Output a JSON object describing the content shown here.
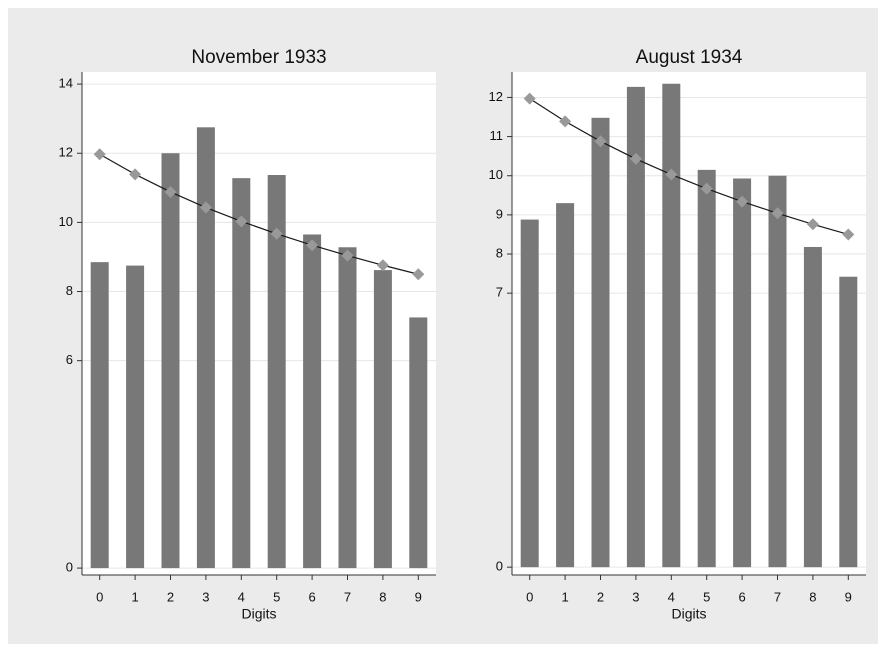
{
  "chart_data": [
    {
      "type": "bar",
      "title": "November 1933",
      "x_label": "Digits",
      "categories": [
        "0",
        "1",
        "2",
        "3",
        "4",
        "5",
        "6",
        "7",
        "8",
        "9"
      ],
      "values": [
        8.85,
        8.75,
        12.0,
        12.75,
        11.28,
        11.37,
        9.65,
        9.28,
        8.62,
        7.25
      ],
      "line_values": [
        11.97,
        11.39,
        10.88,
        10.43,
        10.03,
        9.67,
        9.34,
        9.04,
        8.76,
        8.5
      ],
      "color": "#787878",
      "line_color": "#1a1a1a",
      "marker_color": "#999999",
      "ylim": [
        -0.2,
        14.35
      ],
      "yticks": [
        0,
        6,
        8,
        10,
        12,
        14
      ],
      "grid": true
    },
    {
      "type": "bar",
      "title": "August 1934",
      "x_label": "Digits",
      "categories": [
        "0",
        "1",
        "2",
        "3",
        "4",
        "5",
        "6",
        "7",
        "8",
        "9"
      ],
      "values": [
        8.88,
        9.3,
        11.48,
        12.27,
        12.35,
        10.15,
        9.93,
        10.0,
        8.18,
        7.42
      ],
      "line_values": [
        11.97,
        11.39,
        10.88,
        10.43,
        10.03,
        9.67,
        9.34,
        9.04,
        8.76,
        8.5
      ],
      "color": "#787878",
      "line_color": "#1a1a1a",
      "marker_color": "#999999",
      "ylim": [
        -0.2,
        12.65
      ],
      "yticks": [
        0,
        7,
        8,
        9,
        10,
        11,
        12
      ],
      "grid": true
    }
  ]
}
